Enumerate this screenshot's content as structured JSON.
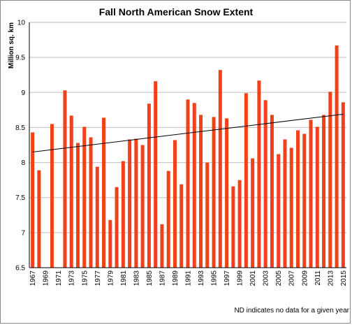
{
  "chart_data": {
    "type": "bar",
    "title": "Fall North American Snow Extent",
    "ylabel": "Million sq. km",
    "xlabel": "",
    "ylim": [
      6.5,
      10
    ],
    "y_ticks": [
      "6.5",
      "7",
      "7.5",
      "8",
      "8.5",
      "9",
      "9.5",
      "10"
    ],
    "x_tick_labels": [
      "1967",
      "1969",
      "1971",
      "1973",
      "1975",
      "1977",
      "1979",
      "1981",
      "1983",
      "1985",
      "1987",
      "1989",
      "1991",
      "1993",
      "1995",
      "1997",
      "1999",
      "2001",
      "2003",
      "2005",
      "2007",
      "2009",
      "2011",
      "2013",
      "2015"
    ],
    "categories": [
      "1967",
      "1968",
      "1969",
      "1970",
      "1971",
      "1972",
      "1973",
      "1974",
      "1975",
      "1976",
      "1977",
      "1978",
      "1979",
      "1980",
      "1981",
      "1982",
      "1983",
      "1984",
      "1985",
      "1986",
      "1987",
      "1988",
      "1989",
      "1990",
      "1991",
      "1992",
      "1993",
      "1994",
      "1995",
      "1996",
      "1997",
      "1998",
      "1999",
      "2000",
      "2001",
      "2002",
      "2003",
      "2004",
      "2005",
      "2006",
      "2007",
      "2008",
      "2009",
      "2010",
      "2011",
      "2012",
      "2013",
      "2014",
      "2015"
    ],
    "values": [
      8.43,
      7.89,
      null,
      8.55,
      null,
      9.03,
      8.67,
      8.28,
      8.51,
      8.36,
      7.94,
      8.64,
      7.18,
      7.65,
      8.02,
      8.33,
      8.34,
      8.25,
      8.84,
      9.16,
      7.12,
      7.88,
      8.32,
      7.69,
      8.9,
      8.85,
      8.68,
      8.0,
      8.65,
      9.32,
      8.63,
      7.66,
      7.75,
      8.99,
      8.06,
      9.17,
      8.89,
      8.68,
      8.12,
      8.33,
      8.21,
      8.46,
      8.41,
      8.61,
      8.51,
      8.68,
      9.01,
      9.67,
      8.86
    ],
    "trendline": {
      "start": 8.15,
      "end": 8.69
    },
    "bar_color": "#f0411a",
    "trend_color": "#000000",
    "grid": true
  },
  "footnote": "ND indicates no data for a given year"
}
